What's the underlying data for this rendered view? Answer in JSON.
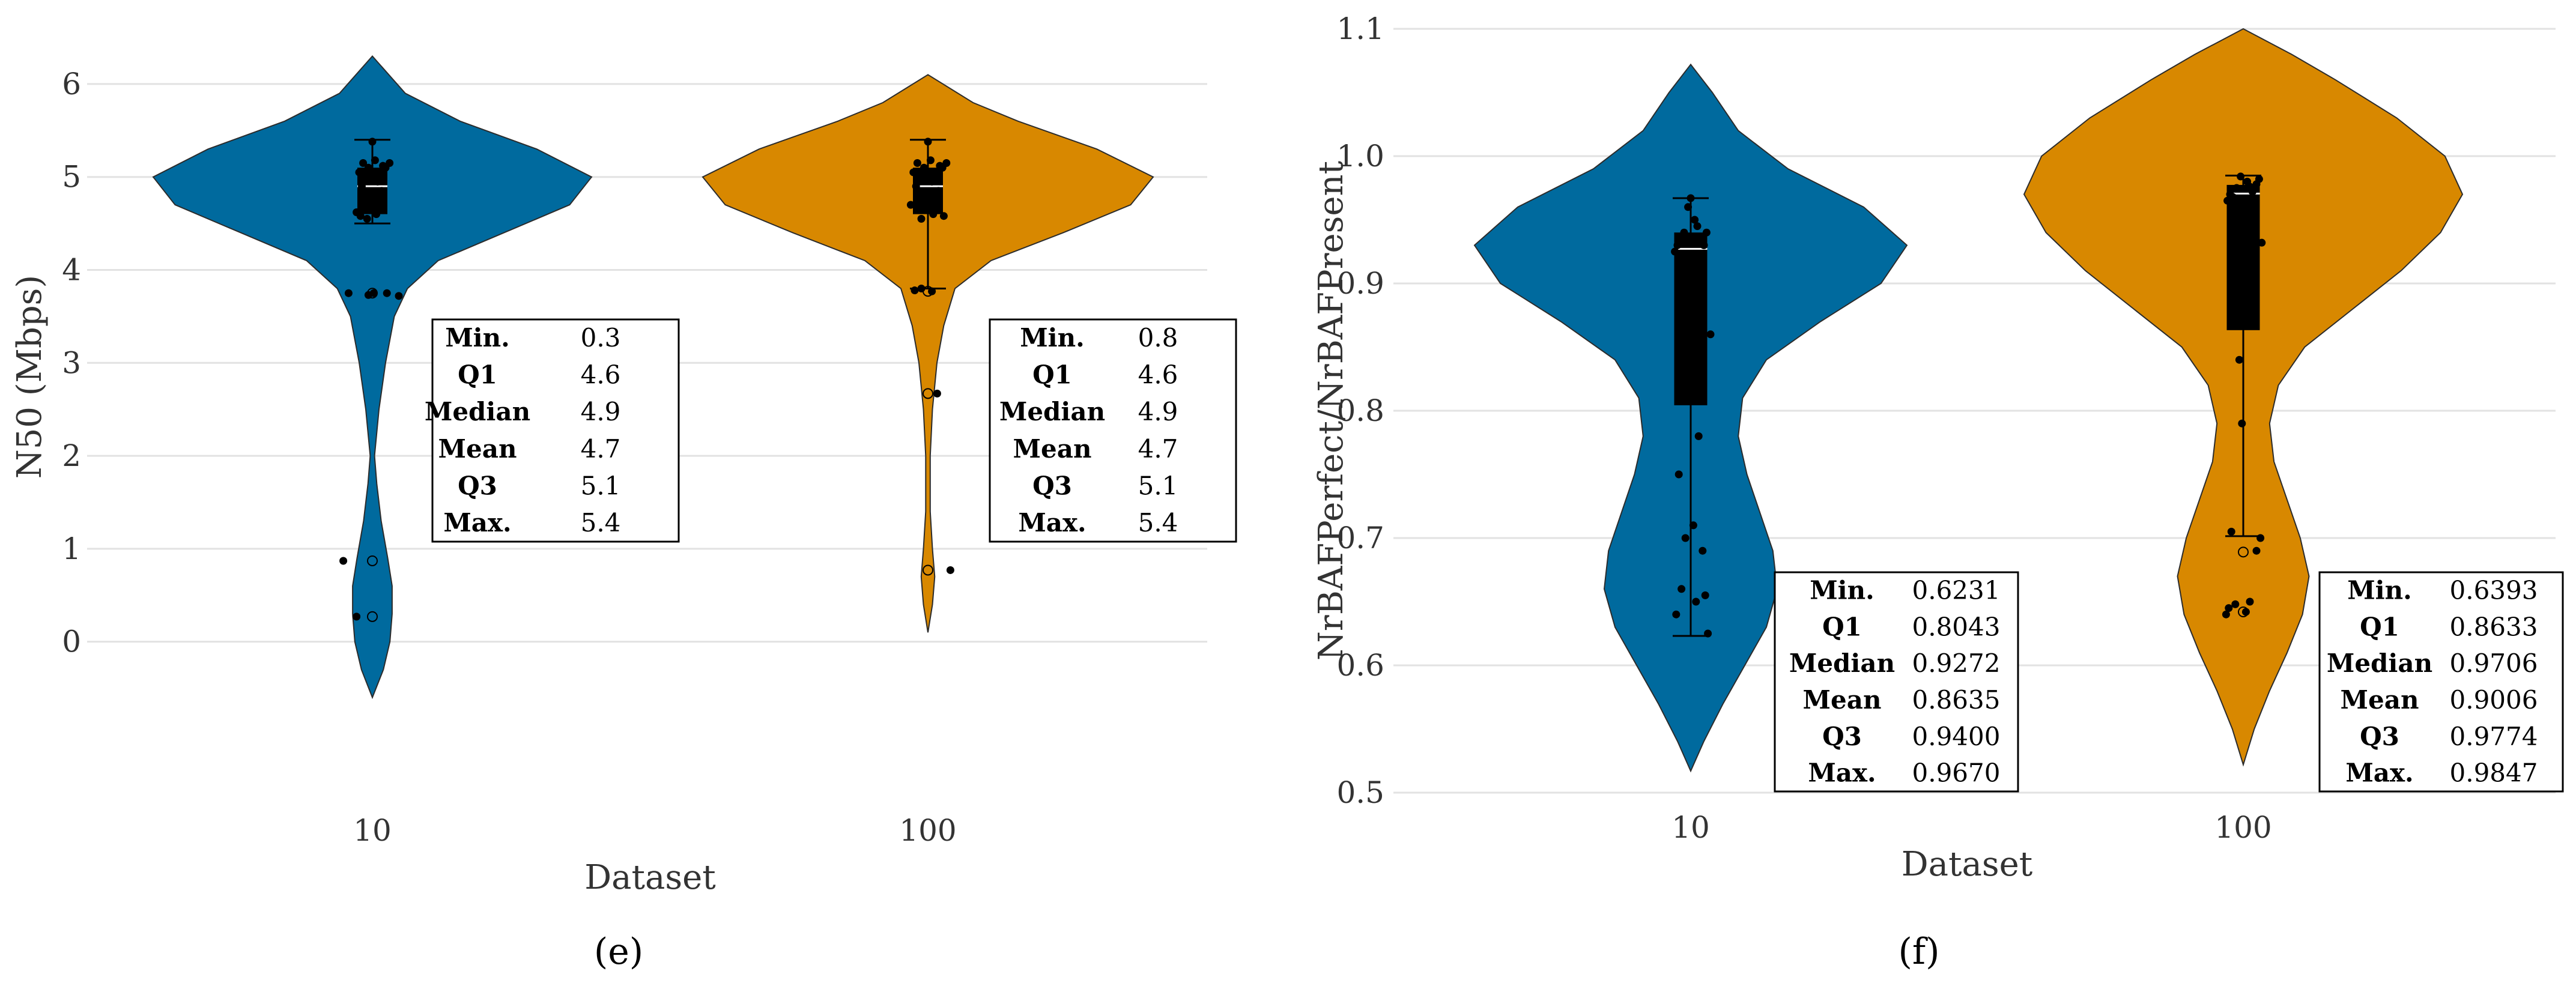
{
  "figure": {
    "panels": [
      "(e)",
      "(f)"
    ]
  },
  "colors": {
    "series_10": "#006a9e",
    "series_100": "#d88800",
    "box": "#000000",
    "grid": "#e2e2e2",
    "axis_text": "#333333"
  },
  "chart_data": [
    {
      "type": "violin",
      "panel": "(e)",
      "title": "",
      "xlabel": "Dataset",
      "ylabel": "N50 (Mbps)",
      "categories": [
        "10",
        "100"
      ],
      "ylim": [
        -0.7,
        6.4
      ],
      "yticks": [
        0,
        1,
        2,
        3,
        4,
        5,
        6
      ],
      "grid": true,
      "stat_labels": [
        "Min.",
        "Q1",
        "Median",
        "Mean",
        "Q3",
        "Max."
      ],
      "groups": [
        {
          "name": "10",
          "color": "#006a9e",
          "stats": {
            "min": "0.3",
            "q1": "4.6",
            "median": "4.9",
            "mean": "4.7",
            "q3": "5.1",
            "max": "5.4"
          },
          "box": {
            "q1": 4.6,
            "median": 4.9,
            "q3": 5.1,
            "whisker_low": 4.5,
            "whisker_high": 5.4
          },
          "violin_extent": [
            -0.6,
            6.3
          ],
          "density": [
            [
              -0.6,
              0.0
            ],
            [
              -0.3,
              0.05
            ],
            [
              0.0,
              0.08
            ],
            [
              0.3,
              0.09
            ],
            [
              0.6,
              0.09
            ],
            [
              0.9,
              0.07
            ],
            [
              1.3,
              0.04
            ],
            [
              1.7,
              0.02
            ],
            [
              2.0,
              0.01
            ],
            [
              2.5,
              0.03
            ],
            [
              3.0,
              0.06
            ],
            [
              3.5,
              0.1
            ],
            [
              3.8,
              0.16
            ],
            [
              4.1,
              0.3
            ],
            [
              4.4,
              0.6
            ],
            [
              4.7,
              0.9
            ],
            [
              5.0,
              1.0
            ],
            [
              5.3,
              0.75
            ],
            [
              5.6,
              0.4
            ],
            [
              5.9,
              0.15
            ],
            [
              6.3,
              0.0
            ]
          ],
          "points": [
            [
              -0.04,
              4.55
            ],
            [
              0.03,
              4.6
            ],
            [
              -0.06,
              4.7
            ],
            [
              0.05,
              4.75
            ],
            [
              -0.02,
              4.8
            ],
            [
              0.07,
              4.85
            ],
            [
              -0.08,
              4.9
            ],
            [
              0.04,
              4.95
            ],
            [
              -0.05,
              5.0
            ],
            [
              0.06,
              5.05
            ],
            [
              -0.03,
              5.1
            ],
            [
              0.08,
              5.12
            ],
            [
              -0.07,
              5.15
            ],
            [
              0.02,
              5.18
            ],
            [
              0.1,
              5.1
            ],
            [
              0.13,
              5.15
            ],
            [
              -0.1,
              5.05
            ],
            [
              -0.12,
              4.62
            ],
            [
              0.0,
              5.38
            ],
            [
              -0.09,
              4.58
            ],
            [
              0.01,
              3.75
            ],
            [
              -0.03,
              3.73
            ],
            [
              0.11,
              3.75
            ],
            [
              0.2,
              3.72
            ],
            [
              -0.18,
              3.75
            ],
            [
              -0.22,
              0.87
            ],
            [
              -0.12,
              0.27
            ]
          ],
          "outliers": [
            [
              0.0,
              3.75
            ],
            [
              0.0,
              0.87
            ],
            [
              0.0,
              0.27
            ]
          ]
        },
        {
          "name": "100",
          "color": "#d88800",
          "stats": {
            "min": "0.8",
            "q1": "4.6",
            "median": "4.9",
            "mean": "4.7",
            "q3": "5.1",
            "max": "5.4"
          },
          "box": {
            "q1": 4.6,
            "median": 4.9,
            "q3": 5.1,
            "whisker_low": 3.8,
            "whisker_high": 5.4
          },
          "violin_extent": [
            0.1,
            6.1
          ],
          "density": [
            [
              0.1,
              0.0
            ],
            [
              0.4,
              0.02
            ],
            [
              0.7,
              0.03
            ],
            [
              1.0,
              0.02
            ],
            [
              1.4,
              0.01
            ],
            [
              2.0,
              0.01
            ],
            [
              2.5,
              0.02
            ],
            [
              3.0,
              0.04
            ],
            [
              3.4,
              0.07
            ],
            [
              3.8,
              0.12
            ],
            [
              4.1,
              0.28
            ],
            [
              4.4,
              0.6
            ],
            [
              4.7,
              0.9
            ],
            [
              5.0,
              1.0
            ],
            [
              5.3,
              0.75
            ],
            [
              5.6,
              0.4
            ],
            [
              5.8,
              0.2
            ],
            [
              6.1,
              0.0
            ]
          ],
          "points": [
            [
              -0.05,
              4.55
            ],
            [
              0.04,
              4.6
            ],
            [
              -0.07,
              4.7
            ],
            [
              0.06,
              4.75
            ],
            [
              -0.02,
              4.8
            ],
            [
              0.08,
              4.85
            ],
            [
              -0.09,
              4.9
            ],
            [
              0.03,
              4.95
            ],
            [
              -0.06,
              5.0
            ],
            [
              0.05,
              5.05
            ],
            [
              -0.03,
              5.1
            ],
            [
              0.09,
              5.12
            ],
            [
              -0.08,
              5.15
            ],
            [
              0.02,
              5.18
            ],
            [
              0.11,
              5.1
            ],
            [
              0.14,
              5.15
            ],
            [
              -0.11,
              5.05
            ],
            [
              0.12,
              4.58
            ],
            [
              0.0,
              5.38
            ],
            [
              -0.13,
              4.7
            ],
            [
              -0.1,
              3.78
            ],
            [
              -0.05,
              3.8
            ],
            [
              0.03,
              3.77
            ],
            [
              0.07,
              2.67
            ],
            [
              0.17,
              0.77
            ]
          ],
          "outliers": [
            [
              0.0,
              3.77
            ],
            [
              0.0,
              2.67
            ],
            [
              0.0,
              0.77
            ]
          ]
        }
      ]
    },
    {
      "type": "violin",
      "panel": "(f)",
      "title": "",
      "xlabel": "Dataset",
      "ylabel": "NrBAFPerfect/NrBAFPresent",
      "categories": [
        "10",
        "100"
      ],
      "ylim": [
        0.5,
        1.1
      ],
      "yticks": [
        "0.5",
        "0.6",
        "0.7",
        "0.8",
        "0.9",
        "1.0",
        "1.1"
      ],
      "grid": true,
      "stat_labels": [
        "Min.",
        "Q1",
        "Median",
        "Mean",
        "Q3",
        "Max."
      ],
      "groups": [
        {
          "name": "10",
          "color": "#006a9e",
          "stats": {
            "min": "0.6231",
            "q1": "0.8043",
            "median": "0.9272",
            "mean": "0.8635",
            "q3": "0.9400",
            "max": "0.9670"
          },
          "box": {
            "q1": 0.8043,
            "median": 0.9272,
            "q3": 0.94,
            "whisker_low": 0.6231,
            "whisker_high": 0.967
          },
          "violin_extent": [
            0.517,
            1.072
          ],
          "density": [
            [
              0.517,
              0.0
            ],
            [
              0.54,
              0.06
            ],
            [
              0.57,
              0.15
            ],
            [
              0.6,
              0.25
            ],
            [
              0.63,
              0.35
            ],
            [
              0.66,
              0.4
            ],
            [
              0.69,
              0.38
            ],
            [
              0.72,
              0.32
            ],
            [
              0.75,
              0.26
            ],
            [
              0.78,
              0.22
            ],
            [
              0.81,
              0.24
            ],
            [
              0.84,
              0.35
            ],
            [
              0.87,
              0.6
            ],
            [
              0.9,
              0.88
            ],
            [
              0.93,
              1.0
            ],
            [
              0.96,
              0.8
            ],
            [
              0.99,
              0.45
            ],
            [
              1.02,
              0.22
            ],
            [
              1.05,
              0.1
            ],
            [
              1.072,
              0.0
            ]
          ],
          "points": [
            [
              -0.1,
              0.93
            ],
            [
              -0.05,
              0.94
            ],
            [
              0.03,
              0.95
            ],
            [
              0.07,
              0.92
            ],
            [
              -0.08,
              0.9
            ],
            [
              0.1,
              0.93
            ],
            [
              -0.02,
              0.96
            ],
            [
              0.05,
              0.945
            ],
            [
              -0.12,
              0.925
            ],
            [
              0.12,
              0.94
            ],
            [
              -0.06,
              0.91
            ],
            [
              0.08,
              0.935
            ],
            [
              0.0,
              0.967
            ],
            [
              -0.03,
              0.83
            ],
            [
              0.06,
              0.78
            ],
            [
              -0.09,
              0.75
            ],
            [
              0.02,
              0.71
            ],
            [
              -0.04,
              0.7
            ],
            [
              0.09,
              0.69
            ],
            [
              -0.07,
              0.66
            ],
            [
              0.04,
              0.65
            ],
            [
              -0.11,
              0.64
            ],
            [
              0.11,
              0.655
            ],
            [
              0.13,
              0.625
            ],
            [
              0.15,
              0.86
            ],
            [
              -0.02,
              0.81
            ]
          ],
          "outliers": []
        },
        {
          "name": "100",
          "color": "#d88800",
          "stats": {
            "min": "0.6393",
            "q1": "0.8633",
            "median": "0.9706",
            "mean": "0.9006",
            "q3": "0.9774",
            "max": "0.9847"
          },
          "box": {
            "q1": 0.8633,
            "median": 0.9706,
            "q3": 0.9774,
            "whisker_low": 0.7015,
            "whisker_high": 0.9847
          },
          "violin_extent": [
            0.522,
            1.1
          ],
          "density": [
            [
              0.522,
              0.0
            ],
            [
              0.55,
              0.05
            ],
            [
              0.58,
              0.12
            ],
            [
              0.61,
              0.2
            ],
            [
              0.64,
              0.27
            ],
            [
              0.67,
              0.3
            ],
            [
              0.7,
              0.26
            ],
            [
              0.73,
              0.2
            ],
            [
              0.76,
              0.14
            ],
            [
              0.79,
              0.12
            ],
            [
              0.82,
              0.16
            ],
            [
              0.85,
              0.28
            ],
            [
              0.88,
              0.5
            ],
            [
              0.91,
              0.72
            ],
            [
              0.94,
              0.9
            ],
            [
              0.97,
              1.0
            ],
            [
              1.0,
              0.92
            ],
            [
              1.03,
              0.7
            ],
            [
              1.06,
              0.42
            ],
            [
              1.08,
              0.22
            ],
            [
              1.1,
              0.0
            ]
          ],
          "points": [
            [
              -0.1,
              0.97
            ],
            [
              -0.05,
              0.975
            ],
            [
              0.03,
              0.98
            ],
            [
              0.07,
              0.972
            ],
            [
              -0.08,
              0.968
            ],
            [
              0.1,
              0.978
            ],
            [
              -0.02,
              0.984
            ],
            [
              0.05,
              0.976
            ],
            [
              -0.12,
              0.965
            ],
            [
              0.12,
              0.982
            ],
            [
              -0.06,
              0.962
            ],
            [
              0.08,
              0.974
            ],
            [
              0.14,
              0.932
            ],
            [
              -0.03,
              0.84
            ],
            [
              -0.01,
              0.79
            ],
            [
              -0.09,
              0.705
            ],
            [
              0.13,
              0.7
            ],
            [
              0.1,
              0.69
            ],
            [
              -0.11,
              0.645
            ],
            [
              -0.06,
              0.648
            ],
            [
              0.02,
              0.642
            ],
            [
              0.05,
              0.65
            ],
            [
              -0.13,
              0.64
            ]
          ],
          "outliers": [
            [
              0.0,
              0.689
            ],
            [
              0.0,
              0.642
            ]
          ]
        }
      ]
    }
  ]
}
